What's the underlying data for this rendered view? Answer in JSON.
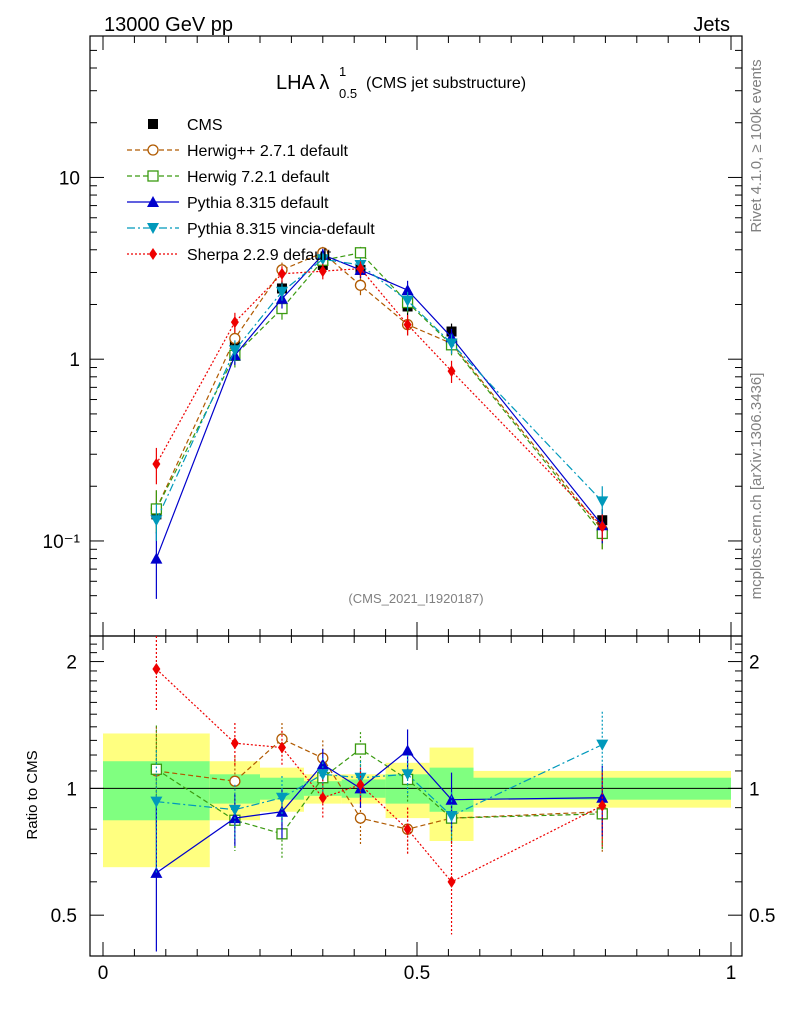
{
  "header": {
    "left": "13000 GeV pp",
    "right": "Jets"
  },
  "plot_title": {
    "main": "LHA λ",
    "sup": "1",
    "sub": "0.5",
    "suffix": "(CMS jet substructure)"
  },
  "side_labels": {
    "rivet": "Rivet 4.1.0, ≥ 100k events",
    "mcplots": "mcplots.cern.ch [arXiv:1306.3436]"
  },
  "analysis_id": "(CMS_2021_I1920187)",
  "ratio_ylabel": "Ratio to CMS",
  "colors": {
    "cms": "#000000",
    "herwigpp": "#b05a00",
    "herwig7": "#3a9a10",
    "pythia": "#0000cc",
    "vincia": "#0099bb",
    "sherpa": "#ee0000",
    "band_yellow": "#ffff80",
    "band_green": "#80ff80"
  },
  "chart_data": {
    "type": "scatter",
    "xlabel": "",
    "xlim": [
      0,
      1
    ],
    "main_ylim": [
      0.03,
      60
    ],
    "main_yscale": "log",
    "ratio_ylim": [
      0.4,
      2.3
    ],
    "ratio_yscale": "log",
    "x_ticks": [
      0,
      0.5,
      1
    ],
    "x_tick_labels": [
      "0",
      "0.5",
      "1"
    ],
    "main_y_ticks": [
      0.1,
      1,
      10
    ],
    "main_y_tick_labels": [
      "10⁻¹",
      "1",
      "10"
    ],
    "ratio_y_ticks": [
      0.5,
      1,
      2
    ],
    "ratio_y_tick_labels": [
      "0.5",
      "1",
      "2"
    ],
    "bins": [
      {
        "lo": 0,
        "hi": 0.17
      },
      {
        "lo": 0.17,
        "hi": 0.25
      },
      {
        "lo": 0.25,
        "hi": 0.32
      },
      {
        "lo": 0.32,
        "hi": 0.38
      },
      {
        "lo": 0.38,
        "hi": 0.45
      },
      {
        "lo": 0.45,
        "hi": 0.52
      },
      {
        "lo": 0.52,
        "hi": 0.59
      },
      {
        "lo": 0.59,
        "hi": 1.0
      }
    ],
    "cms_band_stat": [
      0.16,
      0.08,
      0.06,
      0.04,
      0.05,
      0.08,
      0.12,
      0.06
    ],
    "cms_band_total": [
      0.35,
      0.16,
      0.12,
      0.08,
      0.08,
      0.15,
      0.25,
      0.1
    ],
    "x": [
      0.085,
      0.21,
      0.285,
      0.35,
      0.41,
      0.485,
      0.555,
      0.795
    ],
    "series": [
      {
        "name": "CMS",
        "key": "cms",
        "marker": "square-filled",
        "dash": "none",
        "values": [
          0.14,
          1.25,
          2.45,
          3.3,
          3.1,
          1.95,
          1.42,
          0.13
        ],
        "err": [
          0.02,
          0.15,
          0.25,
          0.3,
          0.3,
          0.2,
          0.15,
          0.02
        ]
      },
      {
        "name": "Herwig++ 2.7.1 default",
        "key": "herwigpp",
        "marker": "circle-open",
        "dash": "5,3",
        "values": [
          0.15,
          1.3,
          3.1,
          3.85,
          2.55,
          1.55,
          1.22,
          0.115
        ],
        "err": [
          0.04,
          0.2,
          0.3,
          0.3,
          0.3,
          0.2,
          0.15,
          0.025
        ]
      },
      {
        "name": "Herwig 7.2.1 default",
        "key": "herwig7",
        "marker": "square-open",
        "dash": "5,3",
        "values": [
          0.15,
          1.05,
          1.9,
          3.5,
          3.85,
          2.05,
          1.2,
          0.11
        ],
        "err": [
          0.04,
          0.15,
          0.25,
          0.3,
          0.3,
          0.25,
          0.15,
          0.02
        ]
      },
      {
        "name": "Pythia 8.315 default",
        "key": "pythia",
        "marker": "triangle-up",
        "dash": "none",
        "values": [
          0.08,
          1.05,
          2.15,
          3.75,
          3.1,
          2.4,
          1.32,
          0.122
        ],
        "err": [
          0.032,
          0.12,
          0.25,
          0.3,
          0.3,
          0.3,
          0.15,
          0.025
        ]
      },
      {
        "name": "Pythia 8.315 vincia-default",
        "key": "vincia",
        "marker": "triangle-down",
        "dash": "8,3,2,3",
        "values": [
          0.13,
          1.12,
          2.35,
          3.55,
          3.3,
          2.1,
          1.22,
          0.165
        ],
        "err": [
          0.03,
          0.15,
          0.25,
          0.3,
          0.3,
          0.25,
          0.15,
          0.035
        ]
      },
      {
        "name": "Sherpa 2.2.9 default",
        "key": "sherpa",
        "marker": "diamond",
        "dash": "2,2",
        "values": [
          0.265,
          1.6,
          2.95,
          3.05,
          3.15,
          1.55,
          0.86,
          0.12
        ],
        "err": [
          0.06,
          0.2,
          0.3,
          0.3,
          0.3,
          0.2,
          0.12,
          0.02
        ]
      }
    ],
    "ratios": [
      {
        "key": "herwigpp",
        "values": [
          1.1,
          1.04,
          1.31,
          1.18,
          0.85,
          0.8,
          0.85,
          0.88
        ],
        "err": [
          0.3,
          0.15,
          0.12,
          0.12,
          0.12,
          0.1,
          0.12,
          0.18
        ]
      },
      {
        "key": "herwig7",
        "values": [
          1.11,
          0.84,
          0.78,
          1.06,
          1.24,
          1.05,
          0.85,
          0.87
        ],
        "err": [
          0.3,
          0.13,
          0.1,
          0.1,
          0.12,
          0.12,
          0.1,
          0.16
        ]
      },
      {
        "key": "pythia",
        "values": [
          0.63,
          0.85,
          0.88,
          1.14,
          1.0,
          1.23,
          0.94,
          0.95
        ],
        "err": [
          0.3,
          0.12,
          0.12,
          0.1,
          0.1,
          0.15,
          0.15,
          0.18
        ]
      },
      {
        "key": "vincia",
        "values": [
          0.93,
          0.89,
          0.95,
          1.08,
          1.06,
          1.08,
          0.86,
          1.27
        ],
        "err": [
          0.3,
          0.13,
          0.12,
          0.1,
          0.1,
          0.12,
          0.12,
          0.25
        ]
      },
      {
        "key": "sherpa",
        "values": [
          1.92,
          1.28,
          1.25,
          0.95,
          1.02,
          0.8,
          0.6,
          0.91
        ],
        "err": [
          0.4,
          0.15,
          0.12,
          0.1,
          0.1,
          0.1,
          0.15,
          0.18
        ]
      }
    ]
  }
}
